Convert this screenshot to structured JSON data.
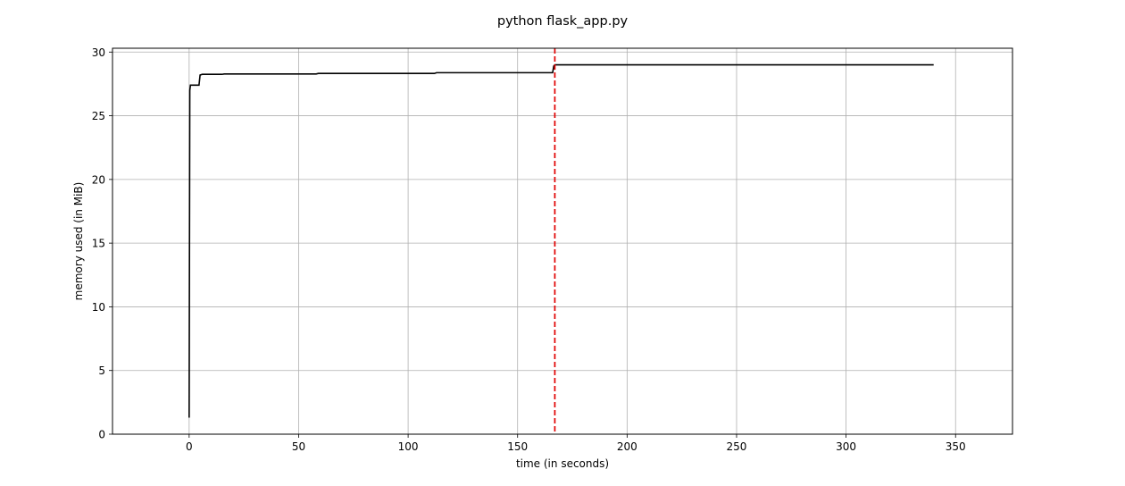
{
  "chart_data": {
    "type": "line",
    "title": "python flask_app.py",
    "xlabel": "time (in seconds)",
    "ylabel": "memory used (in MiB)",
    "xlim": [
      -35,
      376
    ],
    "ylim": [
      0,
      30.3
    ],
    "xticks": [
      0,
      50,
      100,
      150,
      200,
      250,
      300,
      350
    ],
    "yticks": [
      0,
      5,
      10,
      15,
      20,
      25,
      30
    ],
    "grid": true,
    "series": [
      {
        "color": "#000000",
        "style": "solid",
        "x": [
          0,
          0.3,
          0.6,
          1,
          2,
          3,
          4,
          4.5,
          5,
          6,
          10,
          15,
          16,
          30,
          58,
          59,
          80,
          100,
          112,
          113,
          130,
          150,
          165,
          166,
          166.5,
          167,
          200,
          250,
          300,
          340
        ],
        "values": [
          1.3,
          27.0,
          27.4,
          27.4,
          27.4,
          27.4,
          27.4,
          27.4,
          28.2,
          28.25,
          28.25,
          28.25,
          28.28,
          28.28,
          28.28,
          28.32,
          28.32,
          28.32,
          28.32,
          28.38,
          28.38,
          28.38,
          28.38,
          28.38,
          28.9,
          29.0,
          29.0,
          29.0,
          29.0,
          29.0
        ]
      }
    ],
    "annotations": [
      {
        "type": "vline",
        "x": 167,
        "color": "#e00000",
        "style": "dashed"
      }
    ]
  }
}
